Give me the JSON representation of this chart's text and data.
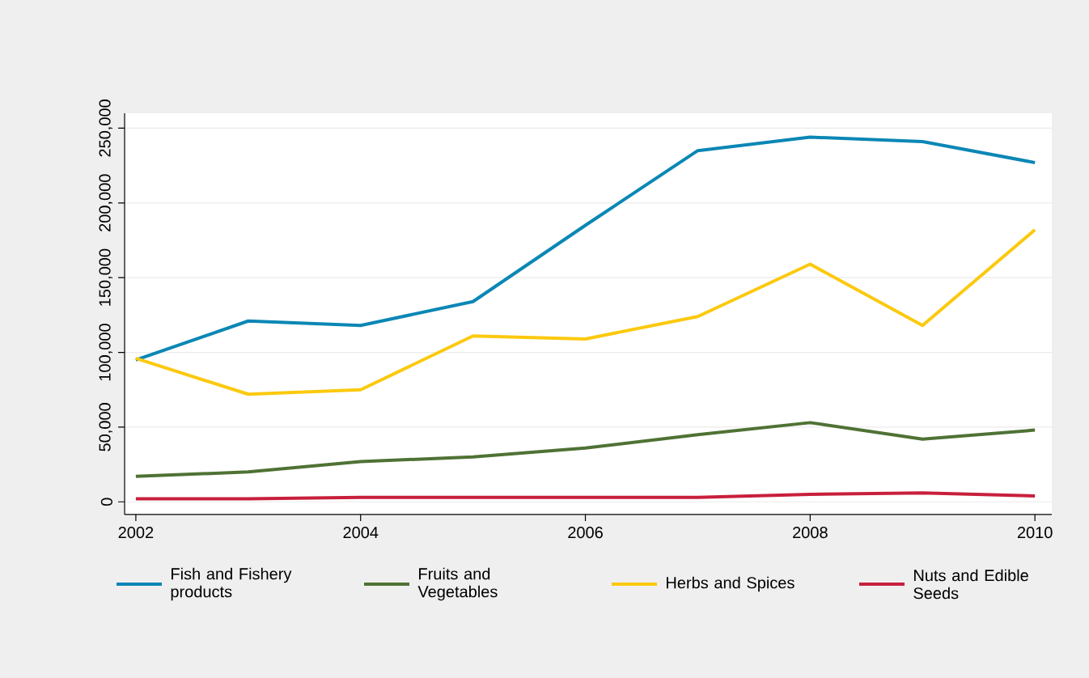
{
  "chart_data": {
    "type": "line",
    "x": [
      2002,
      2003,
      2004,
      2005,
      2006,
      2007,
      2008,
      2009,
      2010
    ],
    "xlim": [
      2001.9,
      2010.15
    ],
    "xticks": [
      2002,
      2004,
      2006,
      2008,
      2010
    ],
    "ylim": [
      -8500,
      260000
    ],
    "yticks": [
      {
        "value": 0,
        "label": "0"
      },
      {
        "value": 50000,
        "label": "50,000"
      },
      {
        "value": 100000,
        "label": "100,000"
      },
      {
        "value": 150000,
        "label": "150,000"
      },
      {
        "value": 200000,
        "label": "200,000"
      },
      {
        "value": 250000,
        "label": "250,000"
      }
    ],
    "grid": "y",
    "legend": "bottom",
    "series": [
      {
        "name": "Fish and Fishery products",
        "color": "#0b87b5",
        "values": [
          95000,
          121000,
          118000,
          134000,
          185000,
          235000,
          244000,
          241000,
          227000
        ]
      },
      {
        "name": "Fruits and Vegetables",
        "color": "#4f7234",
        "values": [
          17000,
          20000,
          27000,
          30000,
          36000,
          45000,
          53000,
          42000,
          48000
        ]
      },
      {
        "name": "Herbs and Spices",
        "color": "#fbc90e",
        "values": [
          96000,
          72000,
          75000,
          111000,
          109000,
          124000,
          159000,
          118000,
          182000
        ]
      },
      {
        "name": "Nuts and Edible Seeds",
        "color": "#c81f3c",
        "values": [
          2000,
          2000,
          3000,
          3000,
          3000,
          3000,
          5000,
          6000,
          4000
        ]
      }
    ]
  }
}
